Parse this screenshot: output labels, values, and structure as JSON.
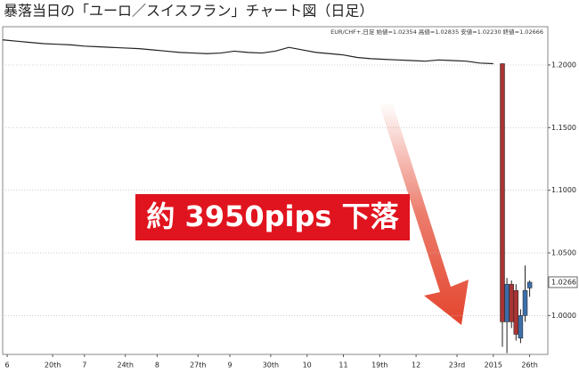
{
  "chart_data": {
    "type": "candlestick",
    "title": "暴落当日の「ユーロ／スイスフラン」チャート図（日足）",
    "info_text": "EUR/CHF+,日足 始値=1.02354 高値=1.02835 安値=1.02230 終値=1.02666",
    "annotation": "約 3950pips 下落",
    "line": {
      "color": "#222222",
      "x": [
        0,
        3,
        6,
        9,
        12,
        15,
        18,
        21,
        24,
        27,
        30,
        33,
        36,
        39,
        42,
        45,
        48,
        51,
        54,
        57,
        60,
        63,
        66,
        69,
        72,
        75,
        78,
        81,
        84,
        87,
        90,
        93,
        96,
        99,
        102,
        105,
        108
      ],
      "values": [
        1.22,
        1.219,
        1.218,
        1.217,
        1.2165,
        1.216,
        1.215,
        1.2145,
        1.214,
        1.2135,
        1.213,
        1.212,
        1.211,
        1.21,
        1.2095,
        1.209,
        1.2095,
        1.211,
        1.21,
        1.2095,
        1.211,
        1.214,
        1.212,
        1.21,
        1.209,
        1.208,
        1.206,
        1.205,
        1.2045,
        1.204,
        1.2035,
        1.203,
        1.204,
        1.2035,
        1.203,
        1.2015,
        1.201
      ]
    },
    "candles": {
      "up_color": "#3d6ea8",
      "down_color": "#a83434",
      "x": [
        110,
        111,
        112,
        113,
        114,
        115,
        116
      ],
      "open": [
        1.201,
        0.995,
        1.025,
        1.02,
        0.982,
        1.0,
        1.022
      ],
      "high": [
        1.2013,
        1.03,
        1.028,
        1.025,
        1.005,
        1.04,
        1.028
      ],
      "low": [
        0.975,
        0.97,
        0.99,
        0.98,
        0.978,
        0.995,
        1.015
      ],
      "close": [
        0.995,
        1.025,
        0.995,
        0.985,
        1.0,
        1.02,
        1.0266
      ]
    },
    "last_price": 1.0266,
    "xlim": [
      0,
      120
    ],
    "ylim": [
      0.969,
      1.2305
    ],
    "yticks": [
      {
        "value": 1.0,
        "label": "1.0000"
      },
      {
        "value": 1.05,
        "label": "1.0500"
      },
      {
        "value": 1.1,
        "label": "1.1000"
      },
      {
        "value": 1.15,
        "label": "1.1500"
      },
      {
        "value": 1.2,
        "label": "1.2000"
      }
    ],
    "xticks": [
      {
        "value": 1,
        "label": "6"
      },
      {
        "value": 11,
        "label": "20th"
      },
      {
        "value": 18,
        "label": "7"
      },
      {
        "value": 27,
        "label": "24th"
      },
      {
        "value": 34,
        "label": "8"
      },
      {
        "value": 43,
        "label": "27th"
      },
      {
        "value": 50,
        "label": "9"
      },
      {
        "value": 59,
        "label": "30th"
      },
      {
        "value": 67,
        "label": "10"
      },
      {
        "value": 75,
        "label": "11"
      },
      {
        "value": 83,
        "label": "19th"
      },
      {
        "value": 91,
        "label": "12"
      },
      {
        "value": 100,
        "label": "23rd"
      },
      {
        "value": 108,
        "label": "2015"
      },
      {
        "value": 116,
        "label": "26th"
      }
    ],
    "grid": true
  }
}
